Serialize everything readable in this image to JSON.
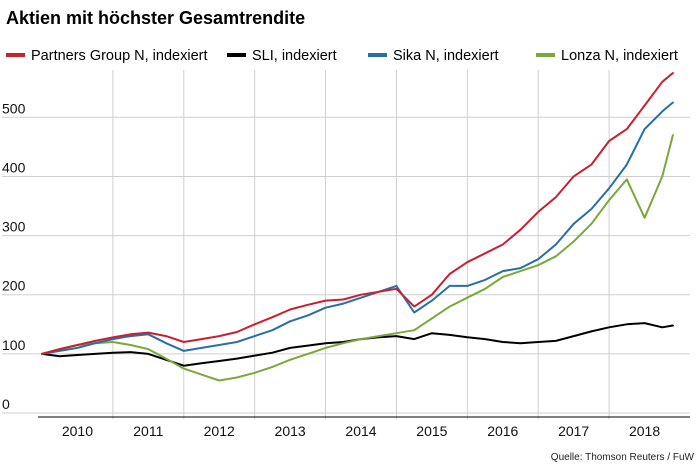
{
  "colors": {
    "background": "#ffffff",
    "grid": "#cfcfcf",
    "partners": "#c8202f",
    "sli": "#000000",
    "sika": "#2a6ea6",
    "lonza": "#7aa83c"
  },
  "chart_data": {
    "type": "line",
    "title": "Aktien mit höchster Gesamtrendite",
    "xlabel": "",
    "ylabel": "",
    "ylim": [
      0,
      580
    ],
    "xlim": [
      2009.5,
      2018.5
    ],
    "yticks": [
      0,
      100,
      200,
      300,
      400,
      500
    ],
    "yticks_drawn": [
      "0",
      "100",
      "200",
      "300",
      "400",
      "500"
    ],
    "xticks": [
      2010,
      2011,
      2012,
      2013,
      2014,
      2015,
      2016,
      2017,
      2018
    ],
    "xtick_labels": [
      "2010",
      "2011",
      "2012",
      "2013",
      "2014",
      "2015",
      "2016",
      "2017",
      "2018"
    ],
    "grid": true,
    "legend_position": "top",
    "source": "Quelle: Thomson Reuters / FuW",
    "series": [
      {
        "name": "Partners Group N, indexiert",
        "color_key": "partners",
        "x": [
          2009.5,
          2009.75,
          2010.0,
          2010.25,
          2010.5,
          2010.75,
          2011.0,
          2011.25,
          2011.5,
          2011.75,
          2012.0,
          2012.25,
          2012.5,
          2012.75,
          2013.0,
          2013.25,
          2013.5,
          2013.75,
          2014.0,
          2014.25,
          2014.5,
          2014.75,
          2015.0,
          2015.25,
          2015.5,
          2015.75,
          2016.0,
          2016.25,
          2016.5,
          2016.75,
          2017.0,
          2017.25,
          2017.5,
          2017.75,
          2018.0,
          2018.25,
          2018.4
        ],
        "values": [
          100,
          108,
          115,
          122,
          128,
          133,
          136,
          130,
          120,
          125,
          130,
          137,
          150,
          162,
          175,
          183,
          190,
          192,
          200,
          205,
          210,
          180,
          200,
          235,
          255,
          270,
          285,
          310,
          340,
          365,
          400,
          420,
          460,
          480,
          520,
          560,
          575
        ]
      },
      {
        "name": "SLI, indexiert",
        "color_key": "sli",
        "x": [
          2009.5,
          2009.75,
          2010.0,
          2010.25,
          2010.5,
          2010.75,
          2011.0,
          2011.25,
          2011.5,
          2011.75,
          2012.0,
          2012.25,
          2012.5,
          2012.75,
          2013.0,
          2013.25,
          2013.5,
          2013.75,
          2014.0,
          2014.25,
          2014.5,
          2014.75,
          2015.0,
          2015.25,
          2015.5,
          2015.75,
          2016.0,
          2016.25,
          2016.5,
          2016.75,
          2017.0,
          2017.25,
          2017.5,
          2017.75,
          2018.0,
          2018.25,
          2018.4
        ],
        "values": [
          100,
          96,
          98,
          100,
          102,
          103,
          100,
          90,
          80,
          84,
          88,
          92,
          97,
          102,
          110,
          114,
          118,
          120,
          125,
          128,
          130,
          125,
          135,
          132,
          128,
          125,
          120,
          118,
          120,
          122,
          130,
          138,
          145,
          150,
          152,
          145,
          148
        ]
      },
      {
        "name": "Sika N, indexiert",
        "color_key": "sika",
        "x": [
          2009.5,
          2009.75,
          2010.0,
          2010.25,
          2010.5,
          2010.75,
          2011.0,
          2011.25,
          2011.5,
          2011.75,
          2012.0,
          2012.25,
          2012.5,
          2012.75,
          2013.0,
          2013.25,
          2013.5,
          2013.75,
          2014.0,
          2014.25,
          2014.5,
          2014.75,
          2015.0,
          2015.25,
          2015.5,
          2015.75,
          2016.0,
          2016.25,
          2016.5,
          2016.75,
          2017.0,
          2017.25,
          2017.5,
          2017.75,
          2018.0,
          2018.25,
          2018.4
        ],
        "values": [
          100,
          105,
          110,
          118,
          125,
          130,
          133,
          118,
          105,
          110,
          115,
          120,
          130,
          140,
          155,
          165,
          178,
          185,
          195,
          205,
          215,
          170,
          190,
          215,
          215,
          225,
          240,
          245,
          260,
          285,
          320,
          345,
          380,
          420,
          480,
          510,
          525
        ]
      },
      {
        "name": "Lonza N, indexiert",
        "color_key": "lonza",
        "x": [
          2009.5,
          2009.75,
          2010.0,
          2010.25,
          2010.5,
          2010.75,
          2011.0,
          2011.25,
          2011.5,
          2011.75,
          2012.0,
          2012.25,
          2012.5,
          2012.75,
          2013.0,
          2013.25,
          2013.5,
          2013.75,
          2014.0,
          2014.25,
          2014.5,
          2014.75,
          2015.0,
          2015.25,
          2015.5,
          2015.75,
          2016.0,
          2016.25,
          2016.5,
          2016.75,
          2017.0,
          2017.25,
          2017.5,
          2017.75,
          2018.0,
          2018.25,
          2018.4
        ],
        "values": [
          100,
          108,
          115,
          118,
          120,
          115,
          108,
          92,
          75,
          65,
          55,
          60,
          68,
          78,
          90,
          100,
          110,
          118,
          125,
          130,
          135,
          140,
          160,
          180,
          195,
          210,
          230,
          240,
          250,
          265,
          290,
          320,
          360,
          395,
          330,
          400,
          470
        ]
      }
    ]
  }
}
